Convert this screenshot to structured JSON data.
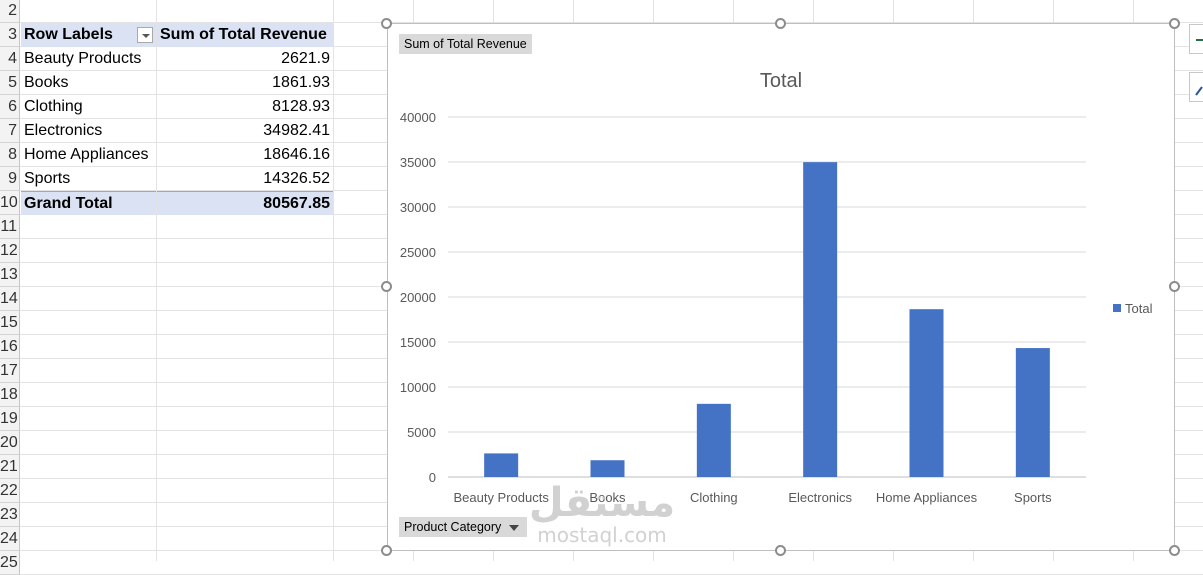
{
  "sheet": {
    "row_numbers": [
      "2",
      "3",
      "4",
      "5",
      "6",
      "7",
      "8",
      "9",
      "10",
      "11",
      "12",
      "13",
      "14",
      "15",
      "16",
      "17",
      "18",
      "19",
      "20",
      "21",
      "22",
      "23",
      "24",
      "25"
    ],
    "pivot": {
      "header_row_labels": "Row Labels",
      "header_value": "Sum of Total Revenue",
      "rows": [
        {
          "label": "Beauty Products",
          "value": "2621.9"
        },
        {
          "label": "Books",
          "value": "1861.93"
        },
        {
          "label": "Clothing",
          "value": "8128.93"
        },
        {
          "label": "Electronics",
          "value": "34982.41"
        },
        {
          "label": "Home Appliances",
          "value": "18646.16"
        },
        {
          "label": "Sports",
          "value": "14326.52"
        }
      ],
      "grand_total_label": "Grand Total",
      "grand_total_value": "80567.85"
    }
  },
  "chart": {
    "value_field_button": "Sum of Total Revenue",
    "axis_field_button": "Product Category",
    "legend_label": "Total",
    "bar_color": "#4472c4"
  },
  "chart_data": {
    "type": "bar",
    "title": "Total",
    "categories": [
      "Beauty Products",
      "Books",
      "Clothing",
      "Electronics",
      "Home Appliances",
      "Sports"
    ],
    "series": [
      {
        "name": "Total",
        "values": [
          2621.9,
          1861.93,
          8128.93,
          34982.41,
          18646.16,
          14326.52
        ]
      }
    ],
    "y_ticks": [
      "0",
      "5000",
      "10000",
      "15000",
      "20000",
      "25000",
      "30000",
      "35000",
      "40000"
    ],
    "ylim": [
      0,
      40000
    ],
    "grid": true,
    "legend_position": "right"
  },
  "watermark": {
    "arabic": "مستقل",
    "latin": "mostaql.com"
  }
}
